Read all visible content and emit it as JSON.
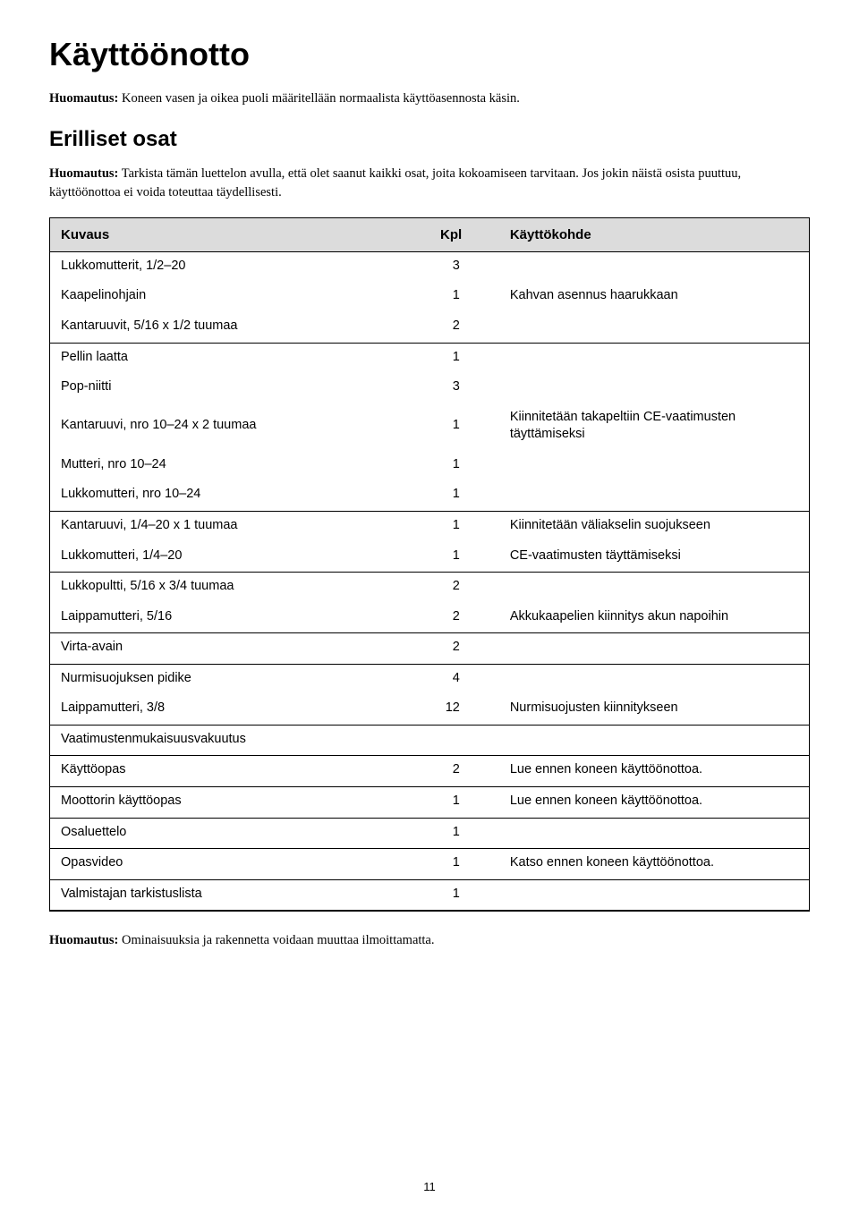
{
  "title": "Käyttöönotto",
  "note1_label": "Huomautus:",
  "note1_body": " Koneen vasen ja oikea puoli määritellään normaalista käyttöasennosta käsin.",
  "subtitle": "Erilliset osat",
  "note2_label": "Huomautus:",
  "note2_body": " Tarkista tämän luettelon avulla, että olet saanut kaikki osat, joita kokoamiseen tarvitaan. Jos jokin näistä osista puuttuu, käyttöönottoa ei voida toteuttaa täydellisesti.",
  "columns": {
    "c1": "Kuvaus",
    "c2": "Kpl",
    "c3": "Käyttökohde"
  },
  "rows": [
    {
      "c1": "Lukkomutterit, 1/2–20",
      "c2": "3",
      "c3": "",
      "end": false
    },
    {
      "c1": "Kaapelinohjain",
      "c2": "1",
      "c3": "Kahvan asennus haarukkaan",
      "end": false
    },
    {
      "c1": "Kantaruuvit, 5/16 x 1/2 tuumaa",
      "c2": "2",
      "c3": "",
      "end": true
    },
    {
      "c1": "Pellin laatta",
      "c2": "1",
      "c3": "",
      "end": false
    },
    {
      "c1": "Pop-niitti",
      "c2": "3",
      "c3": "",
      "end": false
    },
    {
      "c1": "Kantaruuvi, nro 10–24 x 2 tuumaa",
      "c2": "1",
      "c3": "Kiinnitetään takapeltiin CE-vaatimusten täyttämiseksi",
      "end": false
    },
    {
      "c1": "Mutteri, nro 10–24",
      "c2": "1",
      "c3": "",
      "end": false
    },
    {
      "c1": "Lukkomutteri, nro 10–24",
      "c2": "1",
      "c3": "",
      "end": true
    },
    {
      "c1": "Kantaruuvi, 1/4–20 x 1 tuumaa",
      "c2": "1",
      "c3": "Kiinnitetään väliakselin suojukseen",
      "end": false
    },
    {
      "c1": "Lukkomutteri, 1/4–20",
      "c2": "1",
      "c3": "CE-vaatimusten täyttämiseksi",
      "end": true
    },
    {
      "c1": "Lukkopultti, 5/16 x 3/4 tuumaa",
      "c2": "2",
      "c3": "",
      "end": false
    },
    {
      "c1": "Laippamutteri, 5/16",
      "c2": "2",
      "c3": "Akkukaapelien kiinnitys akun napoihin",
      "end": true
    },
    {
      "c1": "Virta-avain",
      "c2": "2",
      "c3": "",
      "end": true
    },
    {
      "c1": "Nurmisuojuksen pidike",
      "c2": "4",
      "c3": "",
      "end": false
    },
    {
      "c1": "Laippamutteri, 3/8",
      "c2": "12",
      "c3": "Nurmisuojusten kiinnitykseen",
      "end": true
    },
    {
      "c1": "Vaatimustenmukaisuusvakuutus",
      "c2": "",
      "c3": "",
      "end": true
    },
    {
      "c1": "Käyttöopas",
      "c2": "2",
      "c3": "Lue ennen koneen käyttöönottoa.",
      "end": true
    },
    {
      "c1": "Moottorin käyttöopas",
      "c2": "1",
      "c3": "Lue ennen koneen käyttöönottoa.",
      "end": true
    },
    {
      "c1": "Osaluettelo",
      "c2": "1",
      "c3": "",
      "end": true
    },
    {
      "c1": "Opasvideo",
      "c2": "1",
      "c3": "Katso ennen koneen käyttöönottoa.",
      "end": true
    },
    {
      "c1": "Valmistajan tarkistuslista",
      "c2": "1",
      "c3": "",
      "end": true
    }
  ],
  "footnote_label": "Huomautus:",
  "footnote_body": " Ominaisuuksia ja rakennetta voidaan muuttaa ilmoittamatta.",
  "page_number": "11"
}
